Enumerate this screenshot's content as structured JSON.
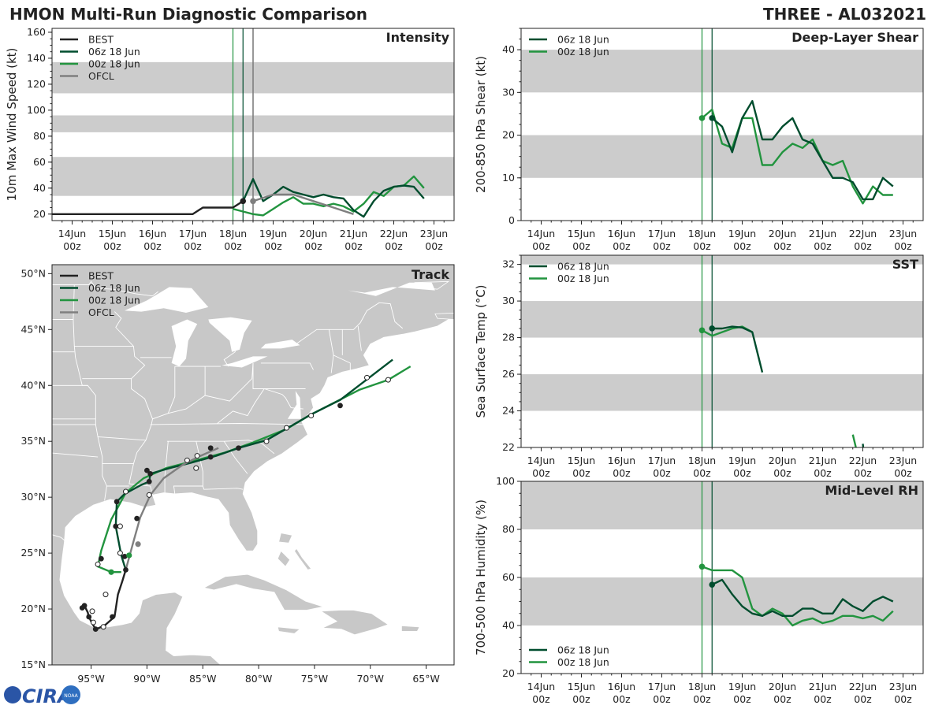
{
  "figure": {
    "title_left": "HMON Multi-Run Diagnostic Comparison",
    "title_right": "THREE - AL032021",
    "logo_text": "CIRA",
    "logo_subtext": "NOAA"
  },
  "colors": {
    "best": "#222222",
    "run06": "#004d2e",
    "run00": "#22943f",
    "ofcl": "#7f7f7f",
    "band": "#cccccc",
    "land": "#c8c8c8",
    "border": "#ffffff",
    "axis": "#222222"
  },
  "time_ticks": [
    "14Jun",
    "15Jun",
    "16Jun",
    "17Jun",
    "18Jun",
    "19Jun",
    "20Jun",
    "21Jun",
    "22Jun",
    "23Jun"
  ],
  "time_sub": "00z",
  "init_lines": [
    4.0,
    4.25
  ],
  "ofcl_line": 4.5,
  "chart_data": [
    {
      "id": "intensity",
      "type": "line",
      "title": "Intensity",
      "ylabel": "10m Max Wind Speed (kt)",
      "xlim": [
        -0.5,
        9.5
      ],
      "ylim": [
        15,
        163
      ],
      "yticks": [
        20,
        40,
        60,
        80,
        100,
        120,
        140,
        160
      ],
      "bands": [
        [
          34,
          64
        ],
        [
          83,
          96
        ],
        [
          113,
          137
        ]
      ],
      "legend": [
        "BEST",
        "06z 18 Jun",
        "00z 18 Jun",
        "OFCL"
      ],
      "series": [
        {
          "name": "BEST",
          "key": "best",
          "x": [
            -0.5,
            0,
            0.5,
            1,
            1.5,
            2,
            2.5,
            3,
            3.25,
            3.5,
            3.75,
            4,
            4.25
          ],
          "y": [
            20,
            20,
            20,
            20,
            20,
            20,
            20,
            20,
            25,
            25,
            25,
            25,
            30
          ]
        },
        {
          "name": "06z 18 Jun",
          "key": "run06",
          "x": [
            4.25,
            4.5,
            4.75,
            5,
            5.25,
            5.5,
            5.75,
            6,
            6.25,
            6.5,
            6.75,
            7,
            7.25,
            7.5,
            7.75,
            8,
            8.25,
            8.5,
            8.75
          ],
          "y": [
            30,
            47,
            30,
            35,
            41,
            37,
            35,
            33,
            35,
            33,
            32,
            23,
            18,
            30,
            38,
            41,
            42,
            41,
            32
          ]
        },
        {
          "name": "00z 18 Jun",
          "key": "run00",
          "x": [
            4,
            4.25,
            4.5,
            4.75,
            5,
            5.25,
            5.5,
            5.75,
            6,
            6.25,
            6.5,
            6.75,
            7,
            7.25,
            7.5,
            7.75,
            8,
            8.25,
            8.5,
            8.75
          ],
          "y": [
            24,
            22,
            20,
            19,
            24,
            29,
            33,
            28,
            28,
            26,
            28,
            26,
            22,
            28,
            37,
            34,
            41,
            42,
            49,
            40
          ]
        },
        {
          "name": "OFCL",
          "key": "ofcl",
          "x": [
            4.5,
            5,
            5.5,
            6,
            6.5,
            7
          ],
          "y": [
            30,
            35,
            35,
            30,
            25,
            20
          ]
        }
      ],
      "markers": [
        {
          "key": "best",
          "x": 4.25,
          "y": 30
        },
        {
          "key": "ofcl",
          "x": 4.5,
          "y": 30
        }
      ]
    },
    {
      "id": "shear",
      "type": "line",
      "title": "Deep-Layer Shear",
      "ylabel": "200-850 hPa Shear (kt)",
      "xlim": [
        -0.5,
        9.5
      ],
      "ylim": [
        0,
        45
      ],
      "yticks": [
        0,
        10,
        20,
        30,
        40
      ],
      "bands": [
        [
          10,
          20
        ],
        [
          30,
          40
        ]
      ],
      "legend": [
        "06z 18 Jun",
        "00z 18 Jun"
      ],
      "series": [
        {
          "name": "06z 18 Jun",
          "key": "run06",
          "x": [
            4.25,
            4.5,
            4.75,
            5,
            5.25,
            5.5,
            5.75,
            6,
            6.25,
            6.5,
            6.75,
            7,
            7.25,
            7.5,
            7.75,
            8,
            8.25,
            8.5,
            8.75
          ],
          "y": [
            24,
            22,
            16,
            24,
            28,
            19,
            19,
            22,
            24,
            19,
            18,
            14,
            10,
            10,
            9,
            5,
            5,
            10,
            8
          ]
        },
        {
          "name": "00z 18 Jun",
          "key": "run00",
          "x": [
            4,
            4.25,
            4.5,
            4.75,
            5,
            5.25,
            5.5,
            5.75,
            6,
            6.25,
            6.5,
            6.75,
            7,
            7.25,
            7.5,
            7.75,
            8,
            8.25,
            8.5,
            8.75
          ],
          "y": [
            24,
            26,
            18,
            17,
            24,
            24,
            13,
            13,
            16,
            18,
            17,
            19,
            14,
            13,
            14,
            8,
            4,
            8,
            6,
            6
          ]
        }
      ],
      "markers": [
        {
          "key": "run00",
          "x": 4,
          "y": 24
        },
        {
          "key": "run06",
          "x": 4.25,
          "y": 24
        }
      ]
    },
    {
      "id": "sst",
      "type": "line",
      "title": "SST",
      "ylabel": "Sea Surface Temp (°C)",
      "xlim": [
        -0.5,
        9.5
      ],
      "ylim": [
        22,
        32.5
      ],
      "yticks": [
        22,
        24,
        26,
        28,
        30,
        32
      ],
      "bands": [
        [
          24,
          26
        ],
        [
          28,
          30
        ],
        [
          32,
          32.5
        ]
      ],
      "legend": [
        "06z 18 Jun",
        "00z 18 Jun"
      ],
      "series": [
        {
          "name": "06z 18 Jun",
          "key": "run06",
          "x": [
            4.25,
            4.5,
            4.75,
            5,
            5.25,
            5.5
          ],
          "y": [
            28.5,
            28.5,
            28.6,
            28.55,
            28.3,
            26.1
          ]
        },
        {
          "name": "00z 18 Jun",
          "key": "run00",
          "x": [
            4,
            4.25,
            4.5,
            4.75,
            5,
            5.25
          ],
          "y": [
            28.4,
            28.1,
            28.3,
            28.5,
            28.6,
            28.3
          ]
        },
        {
          "name": "00z 18 Jun tail",
          "key": "run00",
          "x": [
            7.75,
            7.85
          ],
          "y": [
            22.7,
            21.8
          ]
        },
        {
          "name": "06z 18 Jun tail",
          "key": "run06",
          "x": [
            8.0,
            8.02
          ],
          "y": [
            22.2,
            21.8
          ]
        }
      ],
      "markers": [
        {
          "key": "run00",
          "x": 4,
          "y": 28.4
        },
        {
          "key": "run06",
          "x": 4.25,
          "y": 28.5
        }
      ]
    },
    {
      "id": "rh",
      "type": "line",
      "title": "Mid-Level RH",
      "ylabel": "700-500 hPa Humidity (%)",
      "xlim": [
        -0.5,
        9.5
      ],
      "ylim": [
        20,
        100
      ],
      "yticks": [
        20,
        40,
        60,
        80,
        100
      ],
      "bands": [
        [
          40,
          60
        ],
        [
          80,
          100
        ]
      ],
      "legend": [
        "06z 18 Jun",
        "00z 18 Jun"
      ],
      "series": [
        {
          "name": "06z 18 Jun",
          "key": "run06",
          "x": [
            4.25,
            4.5,
            4.75,
            5,
            5.25,
            5.5,
            5.75,
            6,
            6.25,
            6.5,
            6.75,
            7,
            7.25,
            7.5,
            7.75,
            8,
            8.25,
            8.5,
            8.75
          ],
          "y": [
            57,
            59,
            53,
            48,
            45,
            44,
            46,
            44,
            44,
            47,
            47,
            45,
            45,
            51,
            48,
            46,
            50,
            52,
            50
          ]
        },
        {
          "name": "00z 18 Jun",
          "key": "run00",
          "x": [
            4,
            4.25,
            4.5,
            4.75,
            5,
            5.25,
            5.5,
            5.75,
            6,
            6.25,
            6.5,
            6.75,
            7,
            7.25,
            7.5,
            7.75,
            8,
            8.25,
            8.5,
            8.75
          ],
          "y": [
            64.5,
            63,
            63,
            63,
            60,
            47,
            44,
            47,
            45,
            40,
            42,
            43,
            41,
            42,
            44,
            44,
            43,
            44,
            42,
            46
          ]
        }
      ],
      "markers": [
        {
          "key": "run00",
          "x": 4,
          "y": 64.5
        },
        {
          "key": "run06",
          "x": 4.25,
          "y": 57
        }
      ]
    },
    {
      "id": "track",
      "type": "scatter",
      "title": "Track",
      "xlim": [
        -98.5,
        -62.5
      ],
      "ylim": [
        15,
        50.8
      ],
      "xticks": [
        -95,
        -90,
        -85,
        -80,
        -75,
        -70,
        -65
      ],
      "xtick_labels": [
        "95°W",
        "90°W",
        "85°W",
        "80°W",
        "75°W",
        "70°W",
        "65°W"
      ],
      "yticks": [
        15,
        20,
        25,
        30,
        35,
        40,
        45,
        50
      ],
      "ytick_labels": [
        "15°N",
        "20°N",
        "25°N",
        "30°N",
        "35°N",
        "40°N",
        "45°N",
        "50°N"
      ],
      "legend": [
        "BEST",
        "06z 18 Jun",
        "00z 18 Jun",
        "OFCL"
      ],
      "series": [
        {
          "name": "BEST",
          "key": "best",
          "lon": [
            -95.8,
            -95.6,
            -95.3,
            -95.2,
            -94.9,
            -94.6,
            -94.3,
            -93.7,
            -92.9,
            -92.6,
            -92.2,
            -91.9
          ],
          "lat": [
            20.1,
            20.3,
            19.7,
            19.3,
            18.7,
            18.2,
            18.3,
            18.6,
            19.3,
            21.3,
            22.5,
            23.5
          ]
        },
        {
          "name": "06z 18 Jun",
          "key": "run06",
          "lon": [
            -91.9,
            -92.3,
            -92.8,
            -92.7,
            -92.0,
            -90.5,
            -89.8,
            -89.7,
            -88.0,
            -86.0,
            -83.8,
            -81.8,
            -79.3,
            -75.3,
            -72.7,
            -68.0
          ],
          "lat": [
            23.5,
            24.8,
            27.4,
            29.6,
            30.3,
            31.1,
            31.4,
            32.1,
            32.6,
            33.1,
            33.7,
            34.4,
            35.1,
            37.4,
            38.7,
            42.3
          ]
        },
        {
          "name": "00z 18 Jun",
          "key": "run00",
          "lon": [
            -92.3,
            -93.2,
            -94.4,
            -94.1,
            -93.2,
            -91.9,
            -90.3,
            -88.3,
            -85.6,
            -83.0,
            -80.5,
            -77.5,
            -75.5,
            -71.0,
            -68.4,
            -66.4
          ],
          "lat": [
            23.3,
            23.3,
            23.8,
            25.2,
            28.0,
            30.4,
            31.7,
            32.6,
            33.3,
            34.0,
            34.9,
            36.1,
            37.3,
            39.6,
            40.5,
            41.7
          ]
        },
        {
          "name": "OFCL",
          "key": "ofcl",
          "lon": [
            -91.9,
            -91.3,
            -90.6,
            -89.7,
            -88.5,
            -86.8,
            -85.2,
            -83.6
          ],
          "lat": [
            23.5,
            25.7,
            28.2,
            30.2,
            31.7,
            32.9,
            33.7,
            34.4
          ]
        }
      ],
      "points": [
        {
          "key": "best",
          "style": "filled",
          "lon": [
            -95.8,
            -95.6,
            -95.3,
            -94.9,
            -94.6,
            -93.7,
            -92.6,
            -92.2
          ]
        },
        {
          "key": "best",
          "style": "filled",
          "lat": [
            20.1,
            20.3,
            19.7,
            18.7,
            18.2,
            18.6,
            21.3,
            22.5
          ]
        }
      ],
      "track_points_filled": [
        {
          "lon": -95.8,
          "lat": 20.1
        },
        {
          "lon": -95.6,
          "lat": 20.3
        },
        {
          "lon": -95.2,
          "lat": 19.3
        },
        {
          "lon": -94.6,
          "lat": 18.2
        },
        {
          "lon": -93.1,
          "lat": 19.3
        },
        {
          "lon": -91.9,
          "lat": 23.5
        },
        {
          "lon": -92.0,
          "lat": 24.7
        },
        {
          "lon": -92.8,
          "lat": 27.4
        },
        {
          "lon": -92.7,
          "lat": 29.6
        },
        {
          "lon": -90.9,
          "lat": 28.1
        },
        {
          "lon": -89.8,
          "lat": 31.4
        },
        {
          "lon": -89.7,
          "lat": 32.1
        },
        {
          "lon": -90.0,
          "lat": 32.4
        },
        {
          "lon": -84.3,
          "lat": 33.6
        },
        {
          "lon": -84.3,
          "lat": 34.4
        },
        {
          "lon": -81.8,
          "lat": 34.4
        },
        {
          "lon": -72.7,
          "lat": 38.2
        },
        {
          "lon": -94.1,
          "lat": 24.5
        }
      ],
      "track_points_open": [
        {
          "lon": -94.8,
          "lat": 18.8
        },
        {
          "lon": -93.9,
          "lat": 18.4
        },
        {
          "lon": -94.9,
          "lat": 19.8
        },
        {
          "lon": -93.7,
          "lat": 21.3
        },
        {
          "lon": -94.4,
          "lat": 24.0
        },
        {
          "lon": -92.4,
          "lat": 25.0
        },
        {
          "lon": -92.4,
          "lat": 27.4
        },
        {
          "lon": -91.9,
          "lat": 30.5
        },
        {
          "lon": -89.8,
          "lat": 30.2
        },
        {
          "lon": -86.4,
          "lat": 33.3
        },
        {
          "lon": -85.6,
          "lat": 32.6
        },
        {
          "lon": -85.5,
          "lat": 33.7
        },
        {
          "lon": -79.3,
          "lat": 35.0
        },
        {
          "lon": -77.5,
          "lat": 36.2
        },
        {
          "lon": -75.3,
          "lat": 37.3
        },
        {
          "lon": -70.3,
          "lat": 40.7
        },
        {
          "lon": -68.4,
          "lat": 40.5
        }
      ],
      "track_points_green": [
        {
          "lon": -93.2,
          "lat": 23.3
        },
        {
          "lon": -91.6,
          "lat": 24.8
        },
        {
          "lon": -90.8,
          "lat": 25.8
        }
      ]
    }
  ]
}
